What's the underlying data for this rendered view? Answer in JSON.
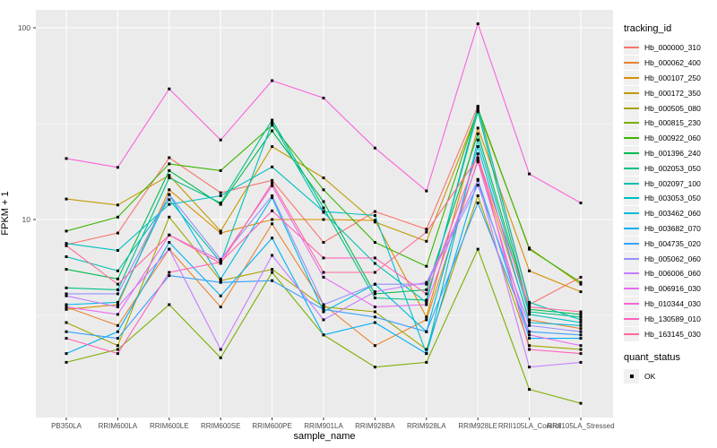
{
  "chart_data": {
    "type": "line",
    "title": "",
    "xlabel": "sample_name",
    "ylabel": "FPKM + 1",
    "y_scale": "log10",
    "ylim": [
      1,
      125
    ],
    "y_ticks": [
      10,
      100
    ],
    "grid": true,
    "legend_position": "right",
    "x_categories": [
      "PB350LA",
      "RRIM600LA",
      "RRIM600LE",
      "RRIM600SE",
      "RRIM600PE",
      "RRIM901LA",
      "RRIM928BA",
      "RRIM928LA",
      "RRIM928LE",
      "RRII105LA_Control",
      "RRII105LA_Stressed"
    ],
    "legend": {
      "color_title": "tracking_id",
      "shape_title": "quant_status",
      "shape_items": [
        {
          "label": "OK"
        }
      ]
    },
    "series": [
      {
        "name": "Hb_000000_310",
        "color": "#F8766D",
        "values": [
          7.4,
          8.5,
          21.0,
          13.8,
          16.0,
          7.6,
          11.0,
          8.9,
          39.0,
          3.6,
          5.0
        ]
      },
      {
        "name": "Hb_000062_400",
        "color": "#EA8331",
        "values": [
          3.5,
          2.8,
          7.0,
          3.5,
          9.5,
          3.6,
          2.2,
          3.0,
          20.5,
          3.0,
          2.7
        ]
      },
      {
        "name": "Hb_000107_250",
        "color": "#D89000",
        "values": [
          3.4,
          3.6,
          14.3,
          8.5,
          10.0,
          10.0,
          9.9,
          3.1,
          30.0,
          5.4,
          4.2
        ]
      },
      {
        "name": "Hb_000172_350",
        "color": "#C09B00",
        "values": [
          12.8,
          11.9,
          17.0,
          8.7,
          24.0,
          16.5,
          9.7,
          7.7,
          37.0,
          7.1,
          4.6
        ]
      },
      {
        "name": "Hb_000505_080",
        "color": "#A3A500",
        "values": [
          2.9,
          2.2,
          10.3,
          4.8,
          5.5,
          3.5,
          3.3,
          2.1,
          13.3,
          2.2,
          2.1
        ]
      },
      {
        "name": "Hb_000815_230",
        "color": "#7CAE00",
        "values": [
          1.8,
          2.1,
          3.6,
          1.9,
          5.3,
          2.5,
          1.7,
          1.8,
          7.0,
          1.3,
          1.1
        ]
      },
      {
        "name": "Hb_000922_060",
        "color": "#39B600",
        "values": [
          8.7,
          10.3,
          19.5,
          18.0,
          31.0,
          14.3,
          7.6,
          5.7,
          38.0,
          7.0,
          4.7
        ]
      },
      {
        "name": "Hb_001396_240",
        "color": "#00BB4E",
        "values": [
          5.5,
          4.9,
          18.0,
          12.0,
          29.0,
          12.4,
          4.1,
          4.3,
          28.0,
          3.4,
          3.2
        ]
      },
      {
        "name": "Hb_002053_050",
        "color": "#00C087",
        "values": [
          4.4,
          4.3,
          16.5,
          12.2,
          33.0,
          11.5,
          3.9,
          3.8,
          36.5,
          3.3,
          3.1
        ]
      },
      {
        "name": "Hb_002097_100",
        "color": "#00C0B2",
        "values": [
          6.4,
          5.4,
          12.7,
          6.0,
          32.0,
          10.9,
          5.9,
          3.7,
          38.5,
          3.7,
          3.0
        ]
      },
      {
        "name": "Hb_003053_050",
        "color": "#00BFC4",
        "values": [
          7.5,
          6.9,
          12.0,
          13.3,
          18.8,
          11.0,
          10.5,
          2.0,
          26.0,
          3.2,
          2.9
        ]
      },
      {
        "name": "Hb_003462_060",
        "color": "#00BAE0",
        "values": [
          3.6,
          3.7,
          13.5,
          4.9,
          13.0,
          3.3,
          4.6,
          2.6,
          24.0,
          2.9,
          2.8
        ]
      },
      {
        "name": "Hb_003682_070",
        "color": "#00B0F6",
        "values": [
          2.0,
          2.6,
          7.6,
          4.0,
          8.0,
          2.5,
          2.9,
          2.0,
          16.2,
          2.4,
          2.4
        ]
      },
      {
        "name": "Hb_004735_020",
        "color": "#35A2FF",
        "values": [
          2.6,
          2.4,
          5.1,
          4.7,
          4.8,
          3.4,
          3.1,
          2.6,
          12.2,
          2.6,
          2.5
        ]
      },
      {
        "name": "Hb_005062_060",
        "color": "#9590FF",
        "values": [
          4.1,
          4.1,
          13.5,
          6.2,
          13.3,
          3.6,
          4.6,
          4.6,
          15.1,
          2.8,
          2.6
        ]
      },
      {
        "name": "Hb_006006_060",
        "color": "#C77CFF",
        "values": [
          4.0,
          3.5,
          7.0,
          2.1,
          6.5,
          3.0,
          4.2,
          4.7,
          16.0,
          1.7,
          1.8
        ]
      },
      {
        "name": "Hb_006916_030",
        "color": "#E76BF3",
        "values": [
          3.5,
          3.2,
          8.3,
          6.1,
          15.0,
          5.0,
          3.5,
          3.6,
          20.0,
          2.5,
          2.2
        ]
      },
      {
        "name": "Hb_010344_030",
        "color": "#FA62DB",
        "values": [
          20.8,
          18.7,
          48.0,
          26.0,
          53.0,
          43.0,
          23.6,
          14.1,
          105.0,
          17.3,
          12.2
        ]
      },
      {
        "name": "Hb_130589_010",
        "color": "#FF62BC",
        "values": [
          2.4,
          2.0,
          5.3,
          6.0,
          11.1,
          6.3,
          6.3,
          4.1,
          22.0,
          2.1,
          2.0
        ]
      },
      {
        "name": "Hb_163145_030",
        "color": "#FF6A98",
        "values": [
          7.3,
          4.6,
          8.3,
          5.9,
          15.5,
          5.3,
          5.3,
          8.6,
          21.0,
          3.5,
          3.3
        ]
      }
    ]
  },
  "style": {
    "panel_bg": "#ebebeb",
    "grid_color": "#ffffff",
    "point_color": "#000000",
    "tick_color": "#333333",
    "tick_label_color": "#4d4d4d"
  }
}
